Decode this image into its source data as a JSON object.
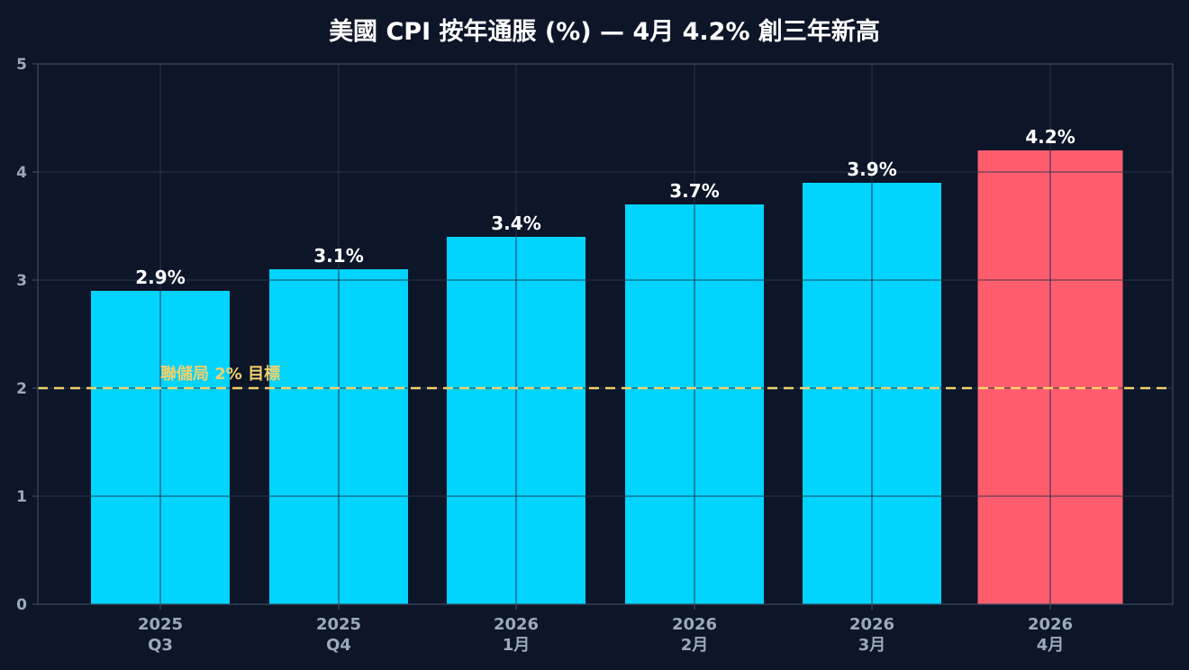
{
  "chart_data": {
    "type": "bar",
    "title": "美國 CPI 按年通脹 (%) — 4月 4.2% 創三年新高",
    "xlabel": "",
    "ylabel": "",
    "categories": [
      [
        "2025",
        "Q3"
      ],
      [
        "2025",
        "Q4"
      ],
      [
        "2026",
        "1月"
      ],
      [
        "2026",
        "2月"
      ],
      [
        "2026",
        "3月"
      ],
      [
        "2026",
        "4月"
      ]
    ],
    "values": [
      2.9,
      3.1,
      3.4,
      3.7,
      3.9,
      4.2
    ],
    "value_labels": [
      "2.9%",
      "3.1%",
      "3.4%",
      "3.7%",
      "3.9%",
      "4.2%"
    ],
    "ylim": [
      0,
      5
    ],
    "yticks": [
      0,
      1,
      2,
      3,
      4,
      5
    ],
    "grid": true,
    "legend": "none",
    "reference_line": {
      "value": 2,
      "label": "聯儲局 2% 目標",
      "style": "dashed",
      "color": "#f2d16b"
    },
    "colors": {
      "background": "#0c1628",
      "bar_default": "#00d4ff",
      "bar_highlight": "#ff5c6e",
      "grid": "#26344b",
      "axis": "#3a4a63",
      "tick_text": "#9aa9bf",
      "title_text": "#ffffff",
      "value_label_text": "#ffffff"
    },
    "highlight_index": 5
  }
}
